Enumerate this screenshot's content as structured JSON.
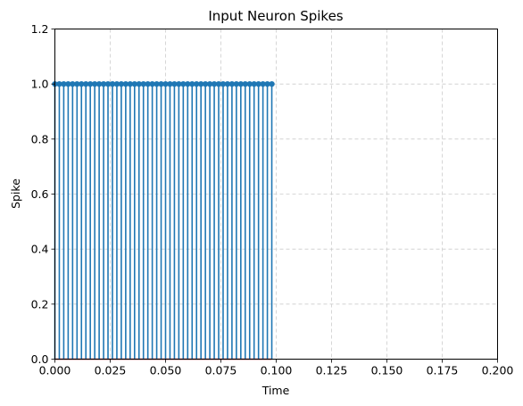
{
  "chart_data": {
    "type": "stem",
    "title": "Input Neuron Spikes",
    "xlabel": "Time",
    "ylabel": "Spike",
    "xlim": [
      0.0,
      0.2
    ],
    "ylim": [
      0.0,
      1.2
    ],
    "xticks": [
      "0.000",
      "0.025",
      "0.050",
      "0.075",
      "0.100",
      "0.125",
      "0.150",
      "0.175",
      "0.200"
    ],
    "yticks": [
      "0.0",
      "0.2",
      "0.4",
      "0.6",
      "0.8",
      "1.0",
      "1.2"
    ],
    "grid": true,
    "stem_start": 0.0,
    "stem_step": 0.002,
    "stem_count": 50,
    "stem_value": 1.0,
    "colors": {
      "stem": "#1f77b4",
      "baseline": "#d62728",
      "grid": "#cccccc"
    }
  }
}
